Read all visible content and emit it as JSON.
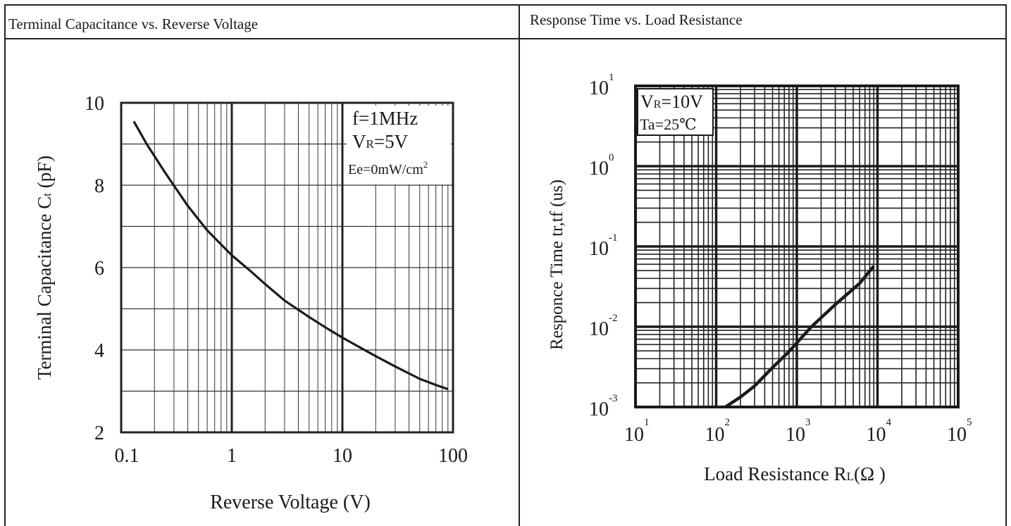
{
  "chart_data": [
    {
      "type": "line",
      "title": "Terminal Capacitance vs. Reverse Voltage",
      "xlabel": "Reverse Voltage (V)",
      "ylabel_main": "Terminal Capacitance C",
      "ylabel_sub": "t",
      "ylabel_unit": " (pF)",
      "x_scale": "log",
      "xlim": [
        0.1,
        100
      ],
      "ylim": [
        2,
        10
      ],
      "x_ticks": [
        0.1,
        1,
        10,
        100
      ],
      "x_tick_labels": [
        "0.1",
        "1",
        "10",
        "100"
      ],
      "y_ticks": [
        2,
        4,
        6,
        8,
        10
      ],
      "y_tick_labels": [
        "2",
        "4",
        "6",
        "8",
        "10"
      ],
      "grid": true,
      "annotations": {
        "line1": "f=1MHz",
        "line2_main": "V",
        "line2_sub": "R",
        "line2_rest": "=5V",
        "line3_main": "Ee=0mW/cm",
        "line3_sup": "2"
      },
      "series": [
        {
          "x": [
            0.13,
            0.17,
            0.25,
            0.4,
            0.6,
            1,
            1.5,
            2,
            3,
            5,
            7,
            10,
            20,
            30,
            50,
            70,
            90
          ],
          "y": [
            9.55,
            9.0,
            8.3,
            7.5,
            6.9,
            6.3,
            5.9,
            5.6,
            5.2,
            4.8,
            4.55,
            4.3,
            3.85,
            3.6,
            3.3,
            3.15,
            3.05
          ]
        }
      ]
    },
    {
      "type": "line",
      "title": "Response Time vs. Load Resistance",
      "xlabel_main": "Load Resistance R",
      "xlabel_sub": "L",
      "xlabel_unit": "(Ω )",
      "ylabel": "Responce Time tr,tf (us)",
      "x_scale": "log",
      "y_scale": "log",
      "xlim": [
        10,
        100000
      ],
      "ylim": [
        0.001,
        10
      ],
      "x_ticks": [
        10,
        100,
        1000,
        10000,
        100000
      ],
      "x_tick_bases": [
        "10",
        "10",
        "10",
        "10",
        "10"
      ],
      "x_tick_exps": [
        "1",
        "2",
        "3",
        "4",
        "5"
      ],
      "y_ticks": [
        0.001,
        0.01,
        0.1,
        1,
        10
      ],
      "y_tick_bases": [
        "10",
        "10",
        "10",
        "10",
        "10"
      ],
      "y_tick_exps": [
        "-3",
        "-2",
        "-1",
        "0",
        "1"
      ],
      "grid": true,
      "annotations": {
        "line1_main": "V",
        "line1_sub": "R",
        "line1_rest": "=10V",
        "line2": "Ta=25℃"
      },
      "series": [
        {
          "x": [
            130,
            200,
            300,
            500,
            800,
            1500,
            3000,
            6000,
            9000
          ],
          "y": [
            0.001,
            0.00133,
            0.00183,
            0.0031,
            0.0049,
            0.0099,
            0.0189,
            0.0347,
            0.0569
          ]
        }
      ]
    }
  ]
}
